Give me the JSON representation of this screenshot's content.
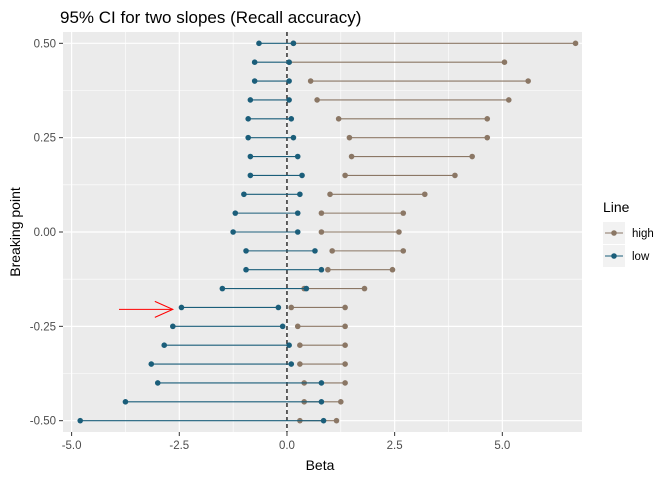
{
  "chart_data": {
    "type": "scatter",
    "title": "95% CI for two slopes (Recall accuracy)",
    "xlabel": "Beta",
    "ylabel": "Breaking point",
    "xlim": [
      -5.2,
      6.85
    ],
    "ylim": [
      -0.53,
      0.53
    ],
    "x_ticks": [
      -5.0,
      -2.5,
      0.0,
      2.5,
      5.0
    ],
    "x_tick_labels": [
      "-5.0",
      "-2.5",
      "0.0",
      "2.5",
      "5.0"
    ],
    "y_ticks": [
      0.5,
      0.25,
      0.0,
      -0.25,
      -0.5
    ],
    "y_tick_labels": [
      "0.50",
      "0.25",
      "0.00",
      "-0.25",
      "-0.50"
    ],
    "reference_line": {
      "x": 0,
      "style": "dashed",
      "color": "#000000"
    },
    "grid": true,
    "background": "#ebebeb",
    "legend": {
      "title": "Line",
      "position": "right",
      "entries": [
        {
          "name": "high",
          "color": "#8b7765"
        },
        {
          "name": "low",
          "color": "#1b5e7a"
        }
      ]
    },
    "annotation": {
      "type": "arrow",
      "color": "#ff0000",
      "from": [
        -3.9,
        -0.205
      ],
      "to": [
        -2.65,
        -0.205
      ]
    },
    "series": [
      {
        "name": "high",
        "color": "#8b7765",
        "y": [
          0.5,
          0.45,
          0.4,
          0.35,
          0.3,
          0.25,
          0.2,
          0.15,
          0.1,
          0.05,
          0.0,
          -0.05,
          -0.1,
          -0.15,
          -0.2,
          -0.25,
          -0.3,
          -0.35,
          -0.4,
          -0.45,
          -0.5
        ],
        "lo": [
          0.15,
          0.05,
          0.55,
          0.7,
          1.2,
          1.45,
          1.5,
          1.35,
          1.0,
          0.8,
          0.8,
          1.05,
          0.95,
          0.4,
          0.1,
          0.25,
          0.3,
          0.3,
          0.4,
          0.4,
          0.3
        ],
        "hi": [
          6.7,
          5.05,
          5.6,
          5.15,
          4.65,
          4.65,
          4.3,
          3.9,
          3.2,
          2.7,
          2.6,
          2.7,
          2.45,
          1.8,
          1.35,
          1.35,
          1.35,
          1.35,
          1.35,
          1.25,
          1.15
        ]
      },
      {
        "name": "low",
        "color": "#1b5e7a",
        "y": [
          0.5,
          0.45,
          0.4,
          0.35,
          0.3,
          0.25,
          0.2,
          0.15,
          0.1,
          0.05,
          0.0,
          -0.05,
          -0.1,
          -0.15,
          -0.2,
          -0.25,
          -0.3,
          -0.35,
          -0.4,
          -0.45,
          -0.5
        ],
        "lo": [
          -0.65,
          -0.75,
          -0.75,
          -0.85,
          -0.9,
          -0.9,
          -0.85,
          -0.85,
          -1.0,
          -1.2,
          -1.25,
          -0.95,
          -0.95,
          -1.5,
          -2.45,
          -2.65,
          -2.85,
          -3.15,
          -3.0,
          -3.75,
          -4.8
        ],
        "hi": [
          0.15,
          0.05,
          0.05,
          0.05,
          0.1,
          0.15,
          0.25,
          0.35,
          0.3,
          0.25,
          0.25,
          0.65,
          0.8,
          0.45,
          -0.2,
          -0.1,
          0.05,
          0.1,
          0.8,
          0.8,
          0.85
        ]
      }
    ]
  }
}
